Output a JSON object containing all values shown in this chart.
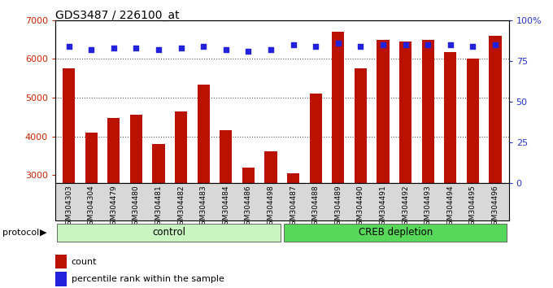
{
  "title": "GDS3487 / 226100_at",
  "samples": [
    "GSM304303",
    "GSM304304",
    "GSM304479",
    "GSM304480",
    "GSM304481",
    "GSM304482",
    "GSM304483",
    "GSM304484",
    "GSM304486",
    "GSM304498",
    "GSM304487",
    "GSM304488",
    "GSM304489",
    "GSM304490",
    "GSM304491",
    "GSM304492",
    "GSM304493",
    "GSM304494",
    "GSM304495",
    "GSM304496"
  ],
  "counts": [
    5750,
    4100,
    4480,
    4560,
    3800,
    4650,
    5330,
    4170,
    3200,
    3620,
    3050,
    5110,
    6700,
    5750,
    6500,
    6450,
    6500,
    6170,
    6010,
    6600
  ],
  "percentile": [
    84,
    82,
    83,
    83,
    82,
    83,
    84,
    82,
    81,
    82,
    85,
    84,
    86,
    84,
    85,
    85,
    85,
    85,
    84,
    85
  ],
  "groups": [
    {
      "label": "control",
      "start": 0,
      "end": 10,
      "color": "#c8f5c0"
    },
    {
      "label": "CREB depletion",
      "start": 10,
      "end": 20,
      "color": "#58d858"
    }
  ],
  "ylim_left": [
    2800,
    7000
  ],
  "ylim_right": [
    0,
    100
  ],
  "yticks_left": [
    3000,
    4000,
    5000,
    6000,
    7000
  ],
  "yticks_right": [
    0,
    25,
    50,
    75,
    100
  ],
  "bar_color": "#bb1100",
  "dot_color": "#2222dd",
  "grid_color": "#555555",
  "bg_color": "#ffffff",
  "left_tick_color": "#cc2200",
  "right_axis_color": "#2233cc",
  "legend_count_color": "#bb1100",
  "legend_pct_color": "#2222dd",
  "xtick_bg": "#d8d8d8"
}
